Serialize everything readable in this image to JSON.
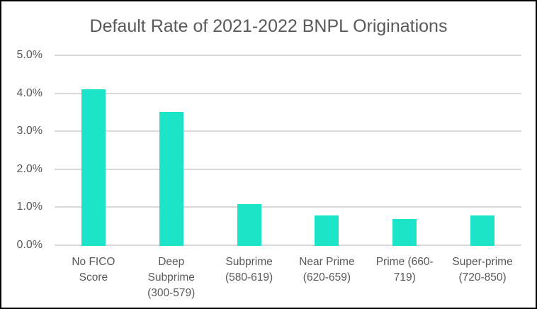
{
  "chart_data": {
    "type": "bar",
    "title": "Default Rate of 2021-2022 BNPL Originations",
    "categories": [
      "No FICO Score",
      "Deep Subprime (300-579)",
      "Subprime (580-619)",
      "Near Prime (620-659)",
      "Prime (660-719)",
      "Super-prime (720-850)"
    ],
    "category_lines": [
      [
        "No FICO",
        "Score"
      ],
      [
        "Deep",
        "Subprime",
        "(300-579)"
      ],
      [
        "Subprime",
        "(580-619)"
      ],
      [
        "Near Prime",
        "(620-659)"
      ],
      [
        "Prime (660-",
        "719)"
      ],
      [
        "Super-prime",
        "(720-850)"
      ]
    ],
    "values": [
      4.1,
      3.5,
      1.1,
      0.8,
      0.7,
      0.8
    ],
    "unit": "%",
    "xlabel": "",
    "ylabel": "",
    "ylim": [
      0,
      5
    ],
    "y_tick_labels": [
      "5.0%",
      "4.0%",
      "3.0%",
      "2.0%",
      "1.0%",
      "0.0%"
    ],
    "grid": true,
    "legend": false,
    "colors": {
      "bar": "#1DE4C9",
      "gridline": "#D9D9D9",
      "text": "#595959",
      "frame_border": "#000000",
      "background": "#FFFFFF"
    }
  }
}
